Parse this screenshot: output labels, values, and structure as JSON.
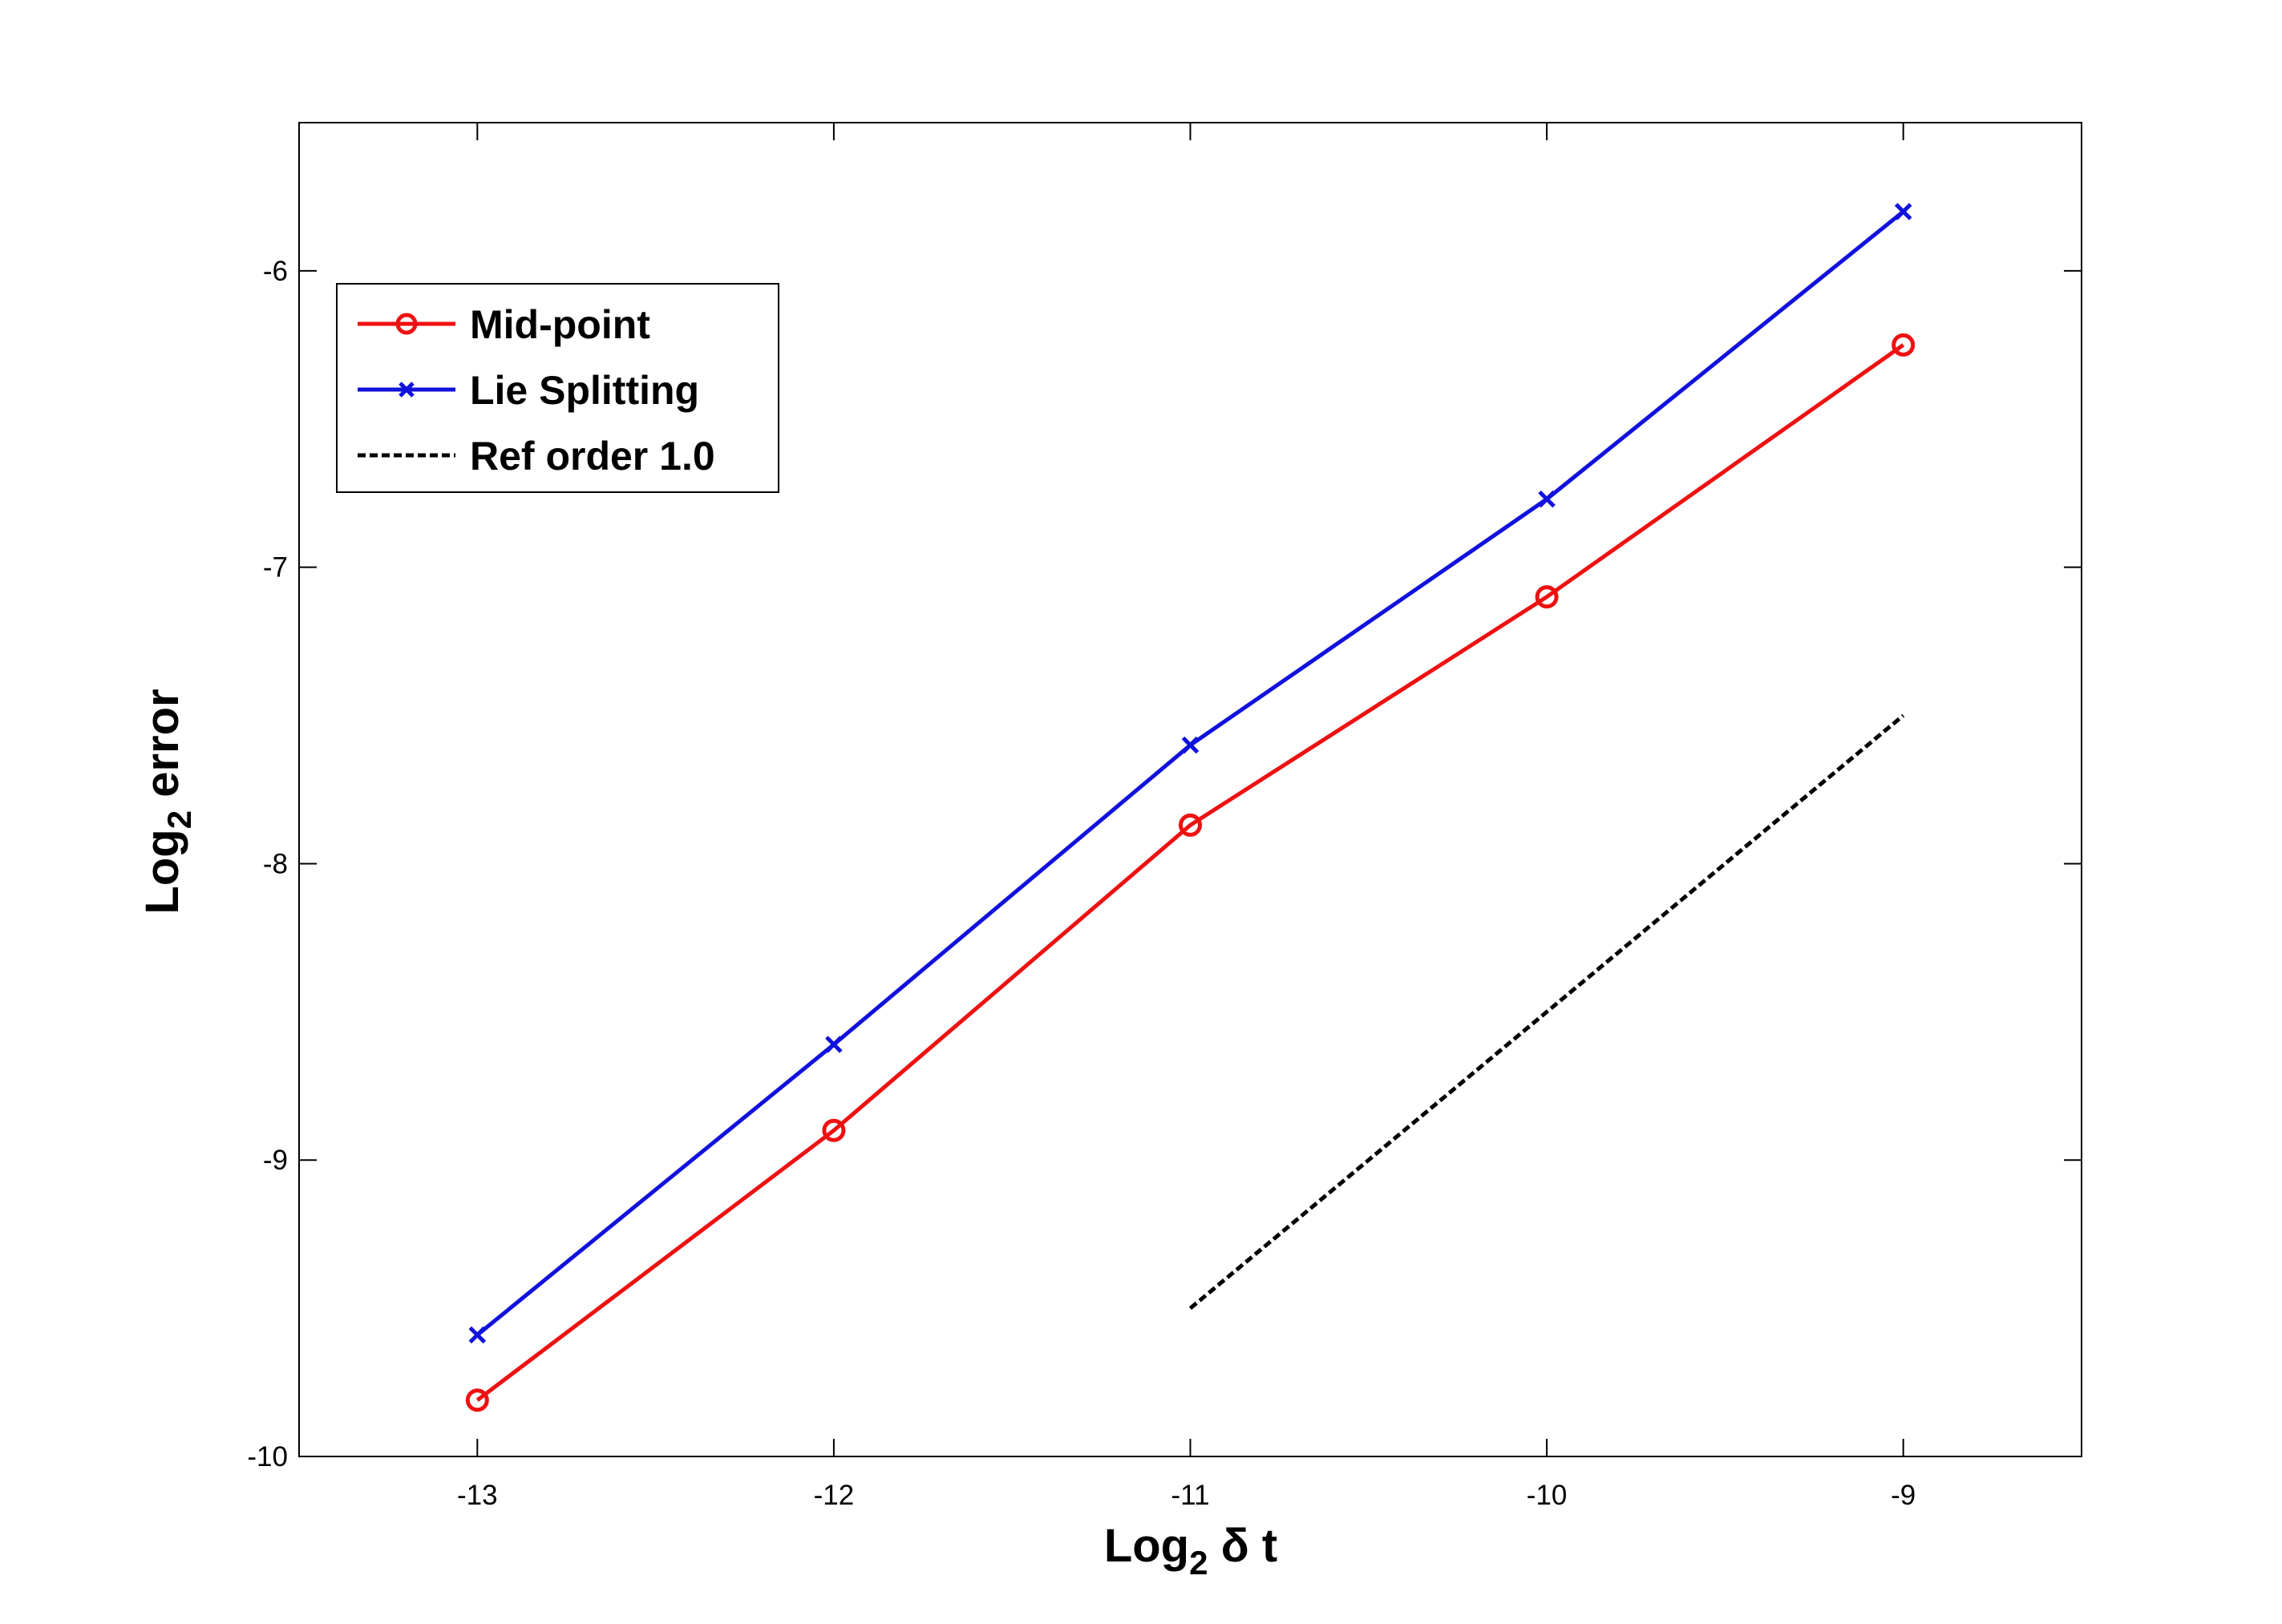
{
  "chart_data": {
    "type": "line",
    "title": "",
    "xlabel": {
      "base": "Log",
      "sub": "2",
      "rest": " δ t"
    },
    "ylabel": {
      "base": "Log",
      "sub": "2",
      "rest": " error"
    },
    "xlim": [
      -13.5,
      -8.5
    ],
    "ylim": [
      -10,
      -5.5
    ],
    "xticks": [
      -13,
      -12,
      -11,
      -10,
      -9
    ],
    "yticks": [
      -10,
      -9,
      -8,
      -7,
      -6
    ],
    "grid": false,
    "legend": {
      "position": "top-left"
    },
    "series": [
      {
        "name": "Mid-point",
        "color": "#ee1111",
        "marker": "circle",
        "line": "solid",
        "x": [
          -13,
          -12,
          -11,
          -10,
          -9
        ],
        "y": [
          -9.81,
          -8.9,
          -7.87,
          -7.1,
          -6.25
        ]
      },
      {
        "name": "Lie Splitting",
        "color": "#1111dd",
        "marker": "x",
        "line": "solid",
        "x": [
          -13,
          -12,
          -11,
          -10,
          -9
        ],
        "y": [
          -9.59,
          -8.61,
          -7.6,
          -6.77,
          -5.8
        ]
      },
      {
        "name": "Ref order 1.0",
        "color": "#000000",
        "marker": "none",
        "line": "dashed",
        "x": [
          -11,
          -9
        ],
        "y": [
          -9.5,
          -7.5
        ]
      }
    ]
  }
}
